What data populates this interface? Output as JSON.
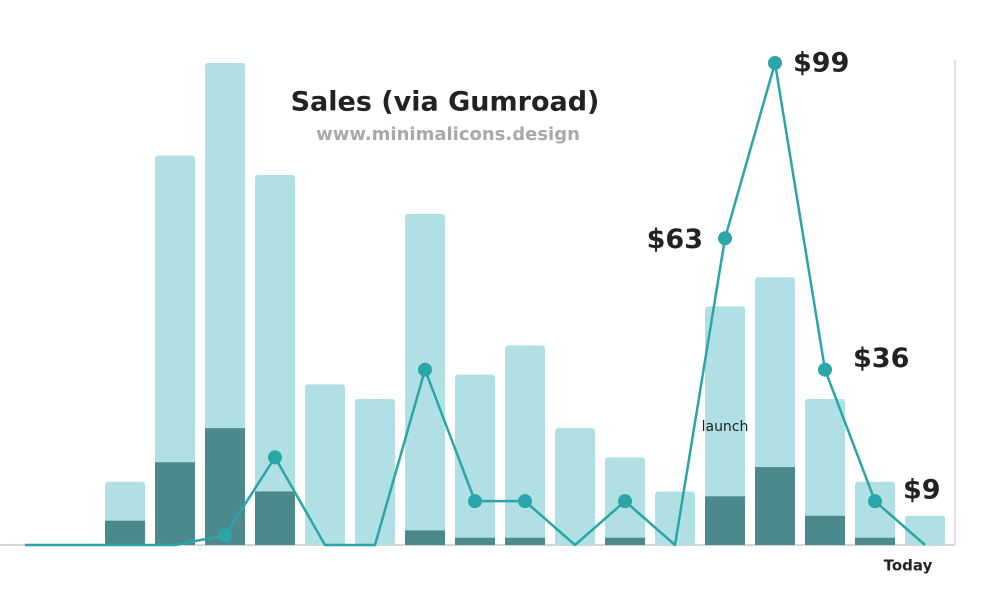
{
  "chart_data": {
    "type": "combo",
    "title": "Sales (via Gumroad)",
    "subtitle": "www.minimalicons.design",
    "categories": [
      null,
      null,
      null,
      null,
      null,
      null,
      null,
      null,
      null,
      null,
      null,
      null,
      null,
      null,
      null,
      null,
      null,
      null,
      "Today"
    ],
    "ylim": [
      0,
      99
    ],
    "series": [
      {
        "type": "bar",
        "color": "#b1e0e4",
        "values": [
          null,
          null,
          13,
          80,
          99,
          76,
          33,
          30,
          68,
          35,
          41,
          24,
          18,
          11,
          49,
          55,
          30,
          13,
          6
        ]
      },
      {
        "type": "bar",
        "color": "#4b898d",
        "values": [
          null,
          null,
          5,
          17,
          24,
          11,
          0,
          0,
          3,
          1.5,
          1.5,
          0,
          1.5,
          0,
          10,
          16,
          6,
          1.5,
          0
        ]
      },
      {
        "type": "line",
        "color": "#2aa5a8",
        "values": [
          0,
          0,
          0,
          0,
          2,
          18,
          0,
          0,
          36,
          9,
          9,
          0,
          9,
          0,
          63,
          99,
          36,
          9,
          0
        ],
        "value_labels": [
          null,
          null,
          null,
          null,
          null,
          null,
          null,
          null,
          null,
          null,
          null,
          null,
          null,
          null,
          "$63",
          "$99",
          "$36",
          "$9",
          null
        ]
      }
    ],
    "annotations": [
      {
        "text": "launch",
        "index": 14
      }
    ]
  }
}
